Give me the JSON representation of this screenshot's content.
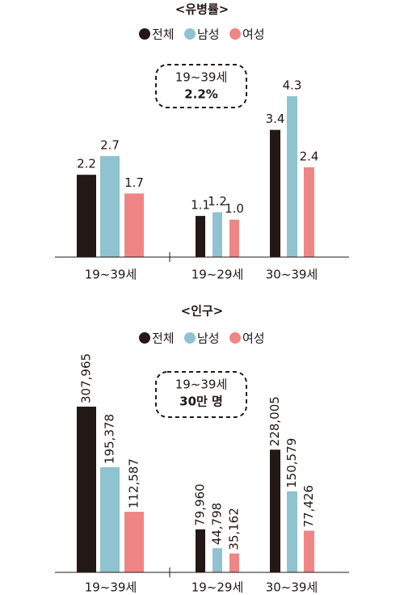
{
  "chart_data": [
    {
      "type": "bar",
      "title": "<유병률>",
      "annotation": [
        "19~39세",
        "2.2%"
      ],
      "categories": [
        "19~39세",
        "19~29세",
        "30~39세"
      ],
      "series": [
        {
          "name": "전체",
          "color": "#231815",
          "values": [
            2.2,
            1.1,
            3.4
          ]
        },
        {
          "name": "남성",
          "color": "#8fc3d0",
          "values": [
            2.7,
            1.2,
            4.3
          ]
        },
        {
          "name": "여성",
          "color": "#ef8585",
          "values": [
            1.7,
            1.0,
            2.4
          ],
          "value_labels": [
            "1.7",
            "1.0",
            "2.4"
          ]
        }
      ]
    },
    {
      "type": "bar",
      "title": "<인구>",
      "annotation": [
        "19~39세",
        "30만 명"
      ],
      "categories": [
        "19~39세",
        "19~29세",
        "30~39세"
      ],
      "series": [
        {
          "name": "전체",
          "color": "#231815",
          "values": [
            307965,
            79960,
            228005
          ],
          "value_labels": [
            "307,965",
            "79,960",
            "228,005"
          ]
        },
        {
          "name": "남성",
          "color": "#8fc3d0",
          "values": [
            195378,
            44798,
            150579
          ],
          "value_labels": [
            "195,378",
            "44,798",
            "150,579"
          ]
        },
        {
          "name": "여성",
          "color": "#ef8585",
          "values": [
            112587,
            35162,
            77426
          ],
          "value_labels": [
            "112,587",
            "35,162",
            "77,426"
          ]
        }
      ]
    }
  ]
}
